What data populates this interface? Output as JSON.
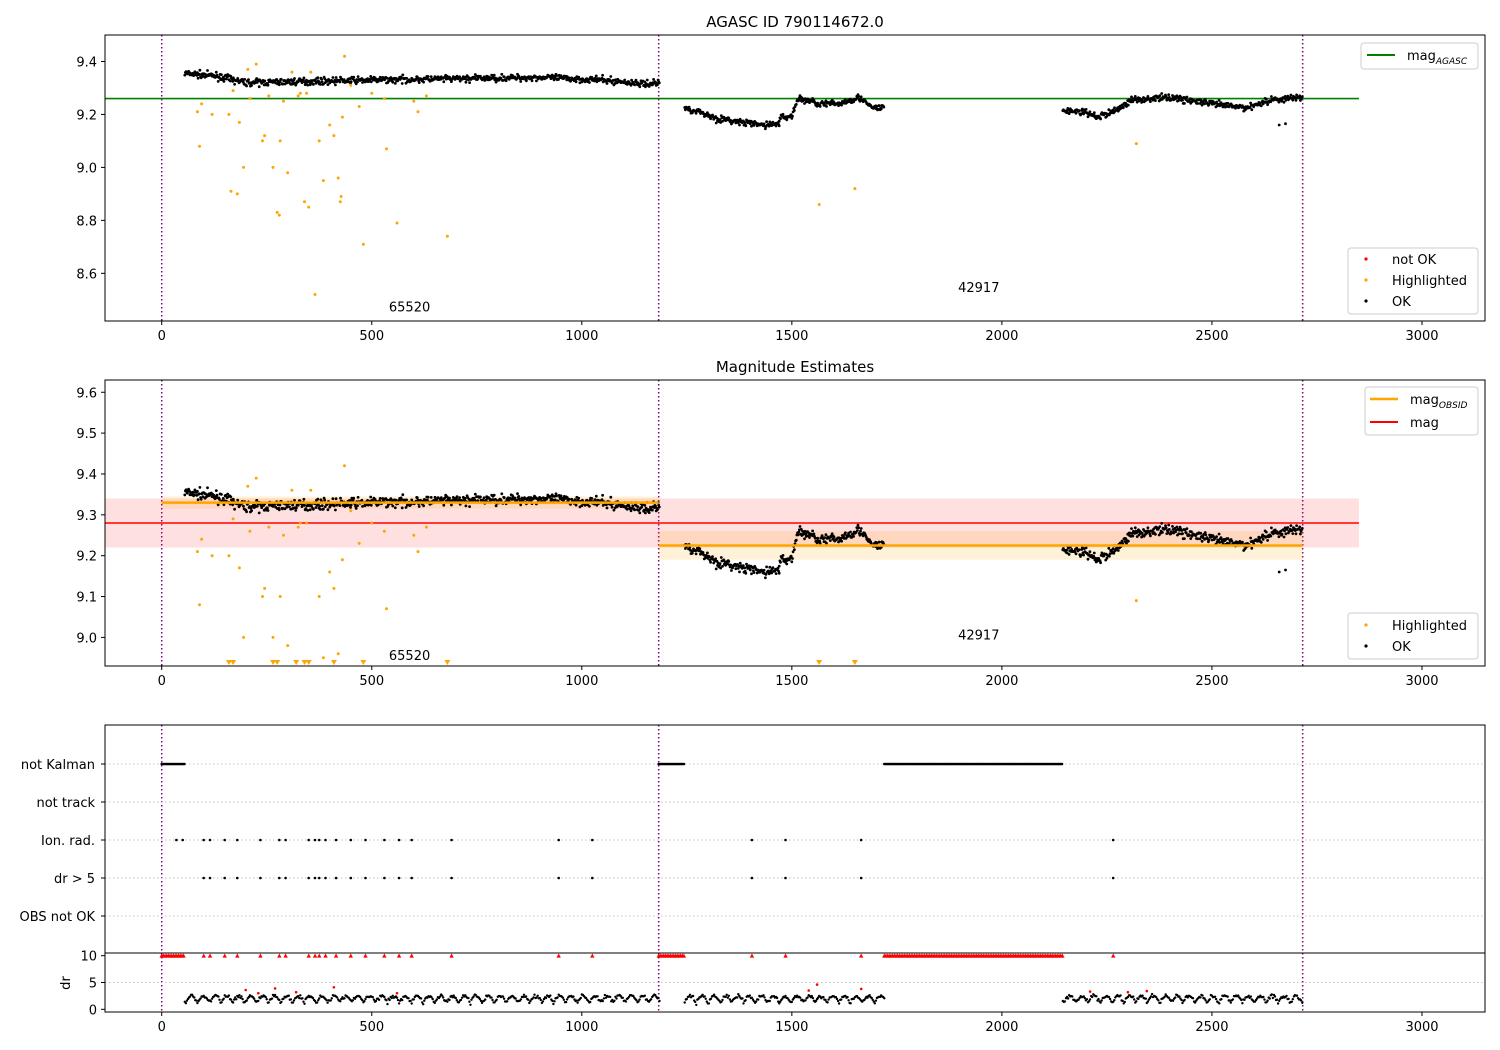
{
  "chart_data": [
    {
      "type": "scatter",
      "title": "AGASC ID 790114672.0",
      "xlim": [
        -135,
        3150
      ],
      "ylim": [
        8.42,
        9.5
      ],
      "xticks": [
        0,
        500,
        1000,
        1500,
        2000,
        2500,
        3000
      ],
      "yticks": [
        8.6,
        8.8,
        9.0,
        9.2,
        9.4
      ],
      "vlines": [
        0,
        1183,
        2716
      ],
      "hline": {
        "value": 9.26,
        "x_range": [
          -135,
          2850
        ],
        "color": "#008000"
      },
      "annotations": [
        {
          "text": "65520",
          "x": 590,
          "y": 8.455
        },
        {
          "text": "42917",
          "x": 1945,
          "y": 8.53
        }
      ],
      "legend_line": [
        {
          "label": "mag",
          "sub": "AGASC",
          "color": "#008000"
        }
      ],
      "legend_points": [
        {
          "label": "not OK",
          "color": "#ff0000"
        },
        {
          "label": "Highlighted",
          "color": "#ffa500"
        },
        {
          "label": "OK",
          "color": "#000000"
        }
      ],
      "series": [
        {
          "name": "OK",
          "color": "#000000",
          "segments": [
            {
              "x0": 55,
              "x1": 1185,
              "points": [
                [
                  55,
                  9.355
                ],
                [
                  130,
                  9.345
                ],
                [
                  200,
                  9.32
                ],
                [
                  350,
                  9.325
                ],
                [
                  500,
                  9.33
                ],
                [
                  700,
                  9.335
                ],
                [
                  900,
                  9.34
                ],
                [
                  1050,
                  9.33
                ],
                [
                  1150,
                  9.315
                ],
                [
                  1185,
                  9.32
                ]
              ],
              "noise": 0.009
            },
            {
              "x0": 1245,
              "x1": 1470,
              "points": [
                [
                  1245,
                  9.225
                ],
                [
                  1280,
                  9.21
                ],
                [
                  1320,
                  9.185
                ],
                [
                  1380,
                  9.17
                ],
                [
                  1430,
                  9.16
                ],
                [
                  1470,
                  9.165
                ]
              ],
              "noise": 0.009
            },
            {
              "x0": 1470,
              "x1": 1560,
              "points": [
                [
                  1470,
                  9.185
                ],
                [
                  1500,
                  9.195
                ],
                [
                  1515,
                  9.26
                ],
                [
                  1560,
                  9.245
                ]
              ],
              "noise": 0.009
            },
            {
              "x0": 1560,
              "x1": 1720,
              "points": [
                [
                  1560,
                  9.24
                ],
                [
                  1610,
                  9.24
                ],
                [
                  1660,
                  9.265
                ],
                [
                  1690,
                  9.225
                ],
                [
                  1720,
                  9.225
                ]
              ],
              "noise": 0.009
            },
            {
              "x0": 2145,
              "x1": 2716,
              "points": [
                [
                  2145,
                  9.215
                ],
                [
                  2190,
                  9.21
                ],
                [
                  2230,
                  9.19
                ],
                [
                  2270,
                  9.215
                ],
                [
                  2310,
                  9.255
                ],
                [
                  2400,
                  9.265
                ],
                [
                  2500,
                  9.24
                ],
                [
                  2580,
                  9.225
                ],
                [
                  2640,
                  9.255
                ],
                [
                  2716,
                  9.265
                ]
              ],
              "noise": 0.009
            }
          ],
          "extra": [
            [
              2660,
              9.16
            ],
            [
              2675,
              9.165
            ]
          ]
        },
        {
          "name": "Highlighted",
          "color": "#ffa500",
          "points": [
            [
              85,
              9.21
            ],
            [
              90,
              9.08
            ],
            [
              95,
              9.24
            ],
            [
              120,
              9.2
            ],
            [
              160,
              9.2
            ],
            [
              165,
              8.91
            ],
            [
              170,
              9.29
            ],
            [
              180,
              8.9
            ],
            [
              185,
              9.17
            ],
            [
              195,
              9.0
            ],
            [
              205,
              9.37
            ],
            [
              210,
              9.26
            ],
            [
              225,
              9.39
            ],
            [
              240,
              9.1
            ],
            [
              245,
              9.12
            ],
            [
              255,
              9.27
            ],
            [
              265,
              9.0
            ],
            [
              275,
              8.83
            ],
            [
              280,
              8.82
            ],
            [
              282,
              9.1
            ],
            [
              290,
              9.25
            ],
            [
              300,
              8.98
            ],
            [
              310,
              9.36
            ],
            [
              325,
              9.27
            ],
            [
              330,
              9.28
            ],
            [
              340,
              8.87
            ],
            [
              345,
              9.28
            ],
            [
              350,
              8.85
            ],
            [
              355,
              9.36
            ],
            [
              365,
              8.52
            ],
            [
              375,
              9.1
            ],
            [
              385,
              8.95
            ],
            [
              400,
              9.16
            ],
            [
              410,
              9.12
            ],
            [
              420,
              8.96
            ],
            [
              425,
              8.87
            ],
            [
              427,
              8.89
            ],
            [
              430,
              9.19
            ],
            [
              435,
              9.42
            ],
            [
              450,
              9.31
            ],
            [
              470,
              9.23
            ],
            [
              480,
              8.71
            ],
            [
              500,
              9.28
            ],
            [
              530,
              9.26
            ],
            [
              535,
              9.07
            ],
            [
              560,
              8.79
            ],
            [
              600,
              9.25
            ],
            [
              610,
              9.21
            ],
            [
              630,
              9.27
            ],
            [
              680,
              8.74
            ],
            [
              1565,
              8.86
            ],
            [
              1650,
              8.92
            ],
            [
              2320,
              9.09
            ]
          ]
        }
      ]
    },
    {
      "type": "scatter",
      "title": "Magnitude Estimates",
      "xlim": [
        -135,
        3150
      ],
      "ylim": [
        8.93,
        9.63
      ],
      "xticks": [
        0,
        500,
        1000,
        1500,
        2000,
        2500,
        3000
      ],
      "yticks": [
        9.0,
        9.1,
        9.2,
        9.3,
        9.4,
        9.5,
        9.6
      ],
      "vlines": [
        0,
        1183,
        2716
      ],
      "mag_line": {
        "value": 9.28,
        "x_range": [
          -135,
          2850
        ],
        "band": [
          9.22,
          9.34
        ],
        "color": "#ff0000"
      },
      "obsid_lines": [
        {
          "x_range": [
            0,
            1183
          ],
          "value": 9.33,
          "band": [
            9.315,
            9.345
          ]
        },
        {
          "x_range": [
            1183,
            2716
          ],
          "value": 9.225,
          "band": [
            9.19,
            9.26
          ]
        }
      ],
      "annotations": [
        {
          "text": "65520",
          "x": 590,
          "y": 8.945
        },
        {
          "text": "42917",
          "x": 1945,
          "y": 8.995
        }
      ],
      "legend_line": [
        {
          "label": "mag",
          "sub": "OBSID",
          "color": "#ffa500"
        },
        {
          "label": "mag",
          "sub": "",
          "color": "#ff0000"
        }
      ],
      "legend_points": [
        {
          "label": "Highlighted",
          "color": "#ffa500"
        },
        {
          "label": "OK",
          "color": "#000000"
        }
      ],
      "clipped_markers_x": [
        160,
        170,
        265,
        275,
        320,
        340,
        350,
        410,
        480,
        680,
        1565,
        1650
      ]
    },
    {
      "type": "scatter",
      "xlim": [
        -135,
        3150
      ],
      "xticks": [
        0,
        500,
        1000,
        1500,
        2000,
        2500,
        3000
      ],
      "vlines": [
        0,
        1183,
        2716
      ],
      "flag_rows": [
        "not Kalman",
        "not track",
        "Ion. rad.",
        "dr > 5",
        "OBS not OK"
      ],
      "flags": {
        "not Kalman": [
          [
            0,
            55
          ],
          [
            1183,
            1245
          ],
          [
            1720,
            2145
          ]
        ],
        "Ion. rad.": [
          35,
          50,
          100,
          115,
          150,
          180,
          235,
          280,
          295,
          350,
          365,
          375,
          390,
          415,
          450,
          485,
          530,
          565,
          595,
          690,
          945,
          1025,
          1405,
          1485,
          1665,
          2265
        ],
        "dr > 5": [
          100,
          115,
          150,
          180,
          235,
          280,
          295,
          350,
          365,
          375,
          390,
          415,
          450,
          485,
          530,
          565,
          595,
          690,
          945,
          1025,
          1405,
          1485,
          1665,
          2265
        ]
      },
      "dr_ylabel": "dr",
      "dr_ylim": [
        -0.5,
        10.5
      ],
      "dr_yticks": [
        0,
        5,
        10
      ],
      "dr_ytick_labels": [
        "0",
        "5",
        "10"
      ]
    }
  ]
}
